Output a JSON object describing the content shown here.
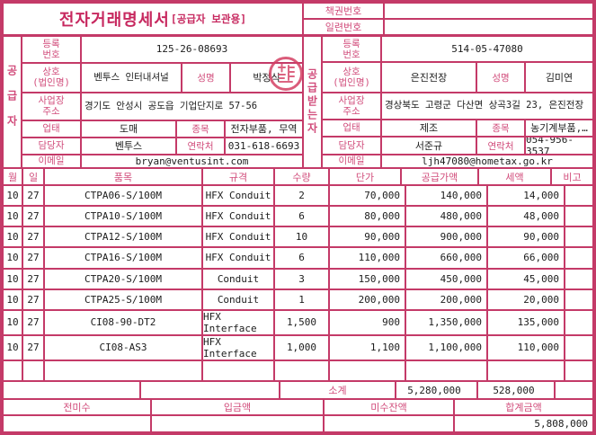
{
  "title": "전자거래명세서",
  "title_suffix": "[공급자 보관용]",
  "doc_numbers": {
    "book_label": "책권번호",
    "book_value": "",
    "serial_label": "일련번호",
    "serial_value": ""
  },
  "supplier": {
    "side_label": "공급자",
    "reg_label_lines": [
      "등록",
      "번호"
    ],
    "reg_value": "125-26-08693",
    "company_label_lines": [
      "상호",
      "(법인명)"
    ],
    "company_value": "벤투스 인터내셔널",
    "name_label": "성명",
    "name_value": "박정식",
    "addr_label_lines": [
      "사업장",
      "주소"
    ],
    "addr_value": "경기도 안성시 공도읍 기업단지로 57-56",
    "biztype_label": "업태",
    "biztype_value": "도매",
    "item_label": "종목",
    "item_value": "전자부품, 무역",
    "manager_label": "담당자",
    "manager_value": "벤투스",
    "phone_label": "연락처",
    "phone_value": "031-618-6693",
    "email_label": "이메일",
    "email_value": "bryan@ventusint.com",
    "seal_icon": "red-circular-seal"
  },
  "buyer": {
    "side_label": "공급받는자",
    "reg_label_lines": [
      "등록",
      "번호"
    ],
    "reg_value": "514-05-47080",
    "company_label_lines": [
      "상호",
      "(법인명)"
    ],
    "company_value": "은진전장",
    "name_label": "성명",
    "name_value": "김미연",
    "addr_label_lines": [
      "사업장",
      "주소"
    ],
    "addr_value": "경상북도 고령군 다산면 상곡3길 23, 은진전장",
    "biztype_label": "업태",
    "biztype_value": "제조",
    "item_label": "종목",
    "item_value": "농기계부품,…",
    "manager_label": "담당자",
    "manager_value": "서준규",
    "phone_label": "연락처",
    "phone_value": "054-956-3537",
    "email_label": "이메일",
    "email_value": "ljh47080@hometax.go.kr"
  },
  "table": {
    "headers": [
      "월",
      "일",
      "품목",
      "규격",
      "수량",
      "단가",
      "공급가액",
      "세액",
      "비고"
    ],
    "rows": [
      [
        "10",
        "27",
        "CTPA06-S/100M",
        "HFX Conduit",
        "2",
        "70,000",
        "140,000",
        "14,000",
        ""
      ],
      [
        "10",
        "27",
        "CTPA10-S/100M",
        "HFX Conduit",
        "6",
        "80,000",
        "480,000",
        "48,000",
        ""
      ],
      [
        "10",
        "27",
        "CTPA12-S/100M",
        "HFX Conduit",
        "10",
        "90,000",
        "900,000",
        "90,000",
        ""
      ],
      [
        "10",
        "27",
        "CTPA16-S/100M",
        "HFX Conduit",
        "6",
        "110,000",
        "660,000",
        "66,000",
        ""
      ],
      [
        "10",
        "27",
        "CTPA20-S/100M",
        "Conduit",
        "3",
        "150,000",
        "450,000",
        "45,000",
        ""
      ],
      [
        "10",
        "27",
        "CTPA25-S/100M",
        "Conduit",
        "1",
        "200,000",
        "200,000",
        "20,000",
        ""
      ],
      [
        "10",
        "27",
        "CI08-90-DT2",
        "HFX Interface",
        "1,500",
        "900",
        "1,350,000",
        "135,000",
        ""
      ],
      [
        "10",
        "27",
        "CI08-AS3",
        "HFX Interface",
        "1,000",
        "1,100",
        "1,100,000",
        "110,000",
        ""
      ],
      [
        "",
        "",
        "",
        "",
        "",
        "",
        "",
        "",
        ""
      ]
    ],
    "subtotal_label": "소계",
    "subtotal_supply": "5,280,000",
    "subtotal_tax": "528,000"
  },
  "footer": {
    "labels": [
      "전미수",
      "입금액",
      "미수잔액",
      "합계금액"
    ],
    "values": [
      "",
      "",
      "",
      "5,808,000"
    ]
  },
  "colors": {
    "frame": "#c43a68",
    "label_text": "#d14c7b",
    "value_text": "#1c1c1c"
  }
}
